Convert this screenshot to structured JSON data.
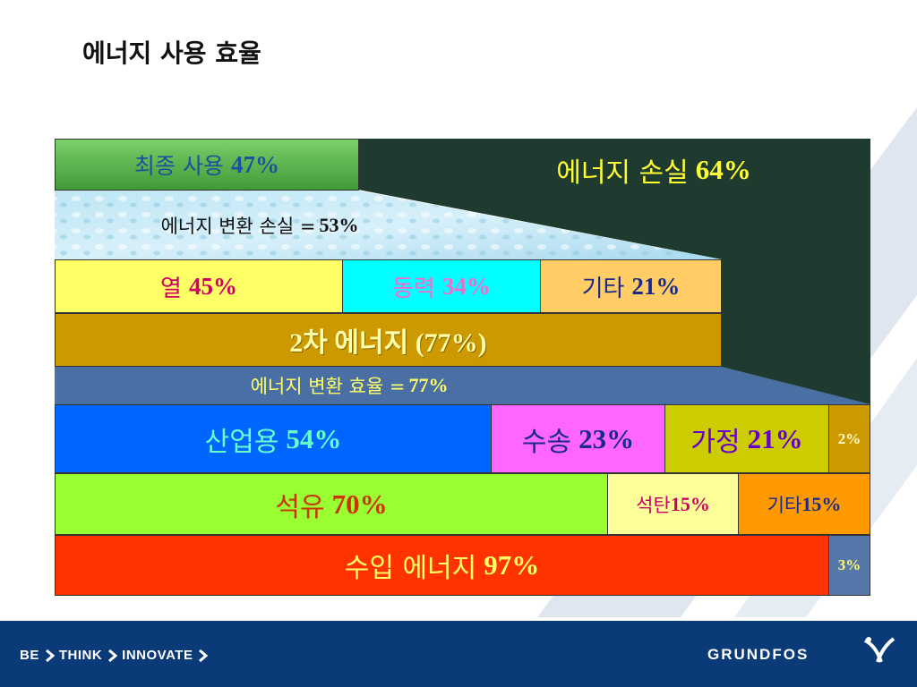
{
  "page": {
    "title": "에너지 사용 효율"
  },
  "diagram": {
    "final_use": {
      "label": "최종 사용",
      "value": "47%"
    },
    "energy_loss": {
      "label": "에너지 손실",
      "value": "64%"
    },
    "conversion_loss": {
      "label": "에너지 변환 손실 =",
      "value": "53%"
    },
    "heat": {
      "label": "열",
      "value": "45%"
    },
    "power": {
      "label": "동력",
      "value": "34%"
    },
    "other_secondary": {
      "label": "기타",
      "value": "21%"
    },
    "secondary_energy": {
      "text": "2차 에너지 (77%)"
    },
    "conversion_efficiency": {
      "label": "에너지 변환 효율 =",
      "value": "77%"
    },
    "industry": {
      "label": "산업용",
      "value": "54%"
    },
    "transport": {
      "label": "수송",
      "value": "23%"
    },
    "household": {
      "label": "가정",
      "value": "21%"
    },
    "misc_use": {
      "value": "2%"
    },
    "oil": {
      "label": "석유",
      "value": "70%"
    },
    "coal": {
      "label": "석탄",
      "value": "15%"
    },
    "other_fuel": {
      "label": "기타",
      "value": "15%"
    },
    "imported": {
      "label": "수입 에너지",
      "value": "97%"
    },
    "domestic": {
      "value": "3%"
    }
  },
  "footer": {
    "slogan": [
      "BE",
      "THINK",
      "INNOVATE"
    ],
    "brand": "GRUNDFOS"
  },
  "colors": {
    "dark_green": "#1f3a2e",
    "final_use_green": "#5cb34a",
    "yellow": "#ffff66",
    "cyan": "#00ffff",
    "peach": "#ffcc66",
    "ochre": "#cc9900",
    "slate_blue": "#4a6fa5",
    "blue": "#0066ff",
    "magenta": "#ff66ff",
    "olive": "#cccc00",
    "lime": "#99ff33",
    "pale_yellow": "#ffff99",
    "orange": "#ff9900",
    "red": "#ff3300",
    "steel": "#5577aa",
    "footer_blue": "#0b3a78"
  }
}
